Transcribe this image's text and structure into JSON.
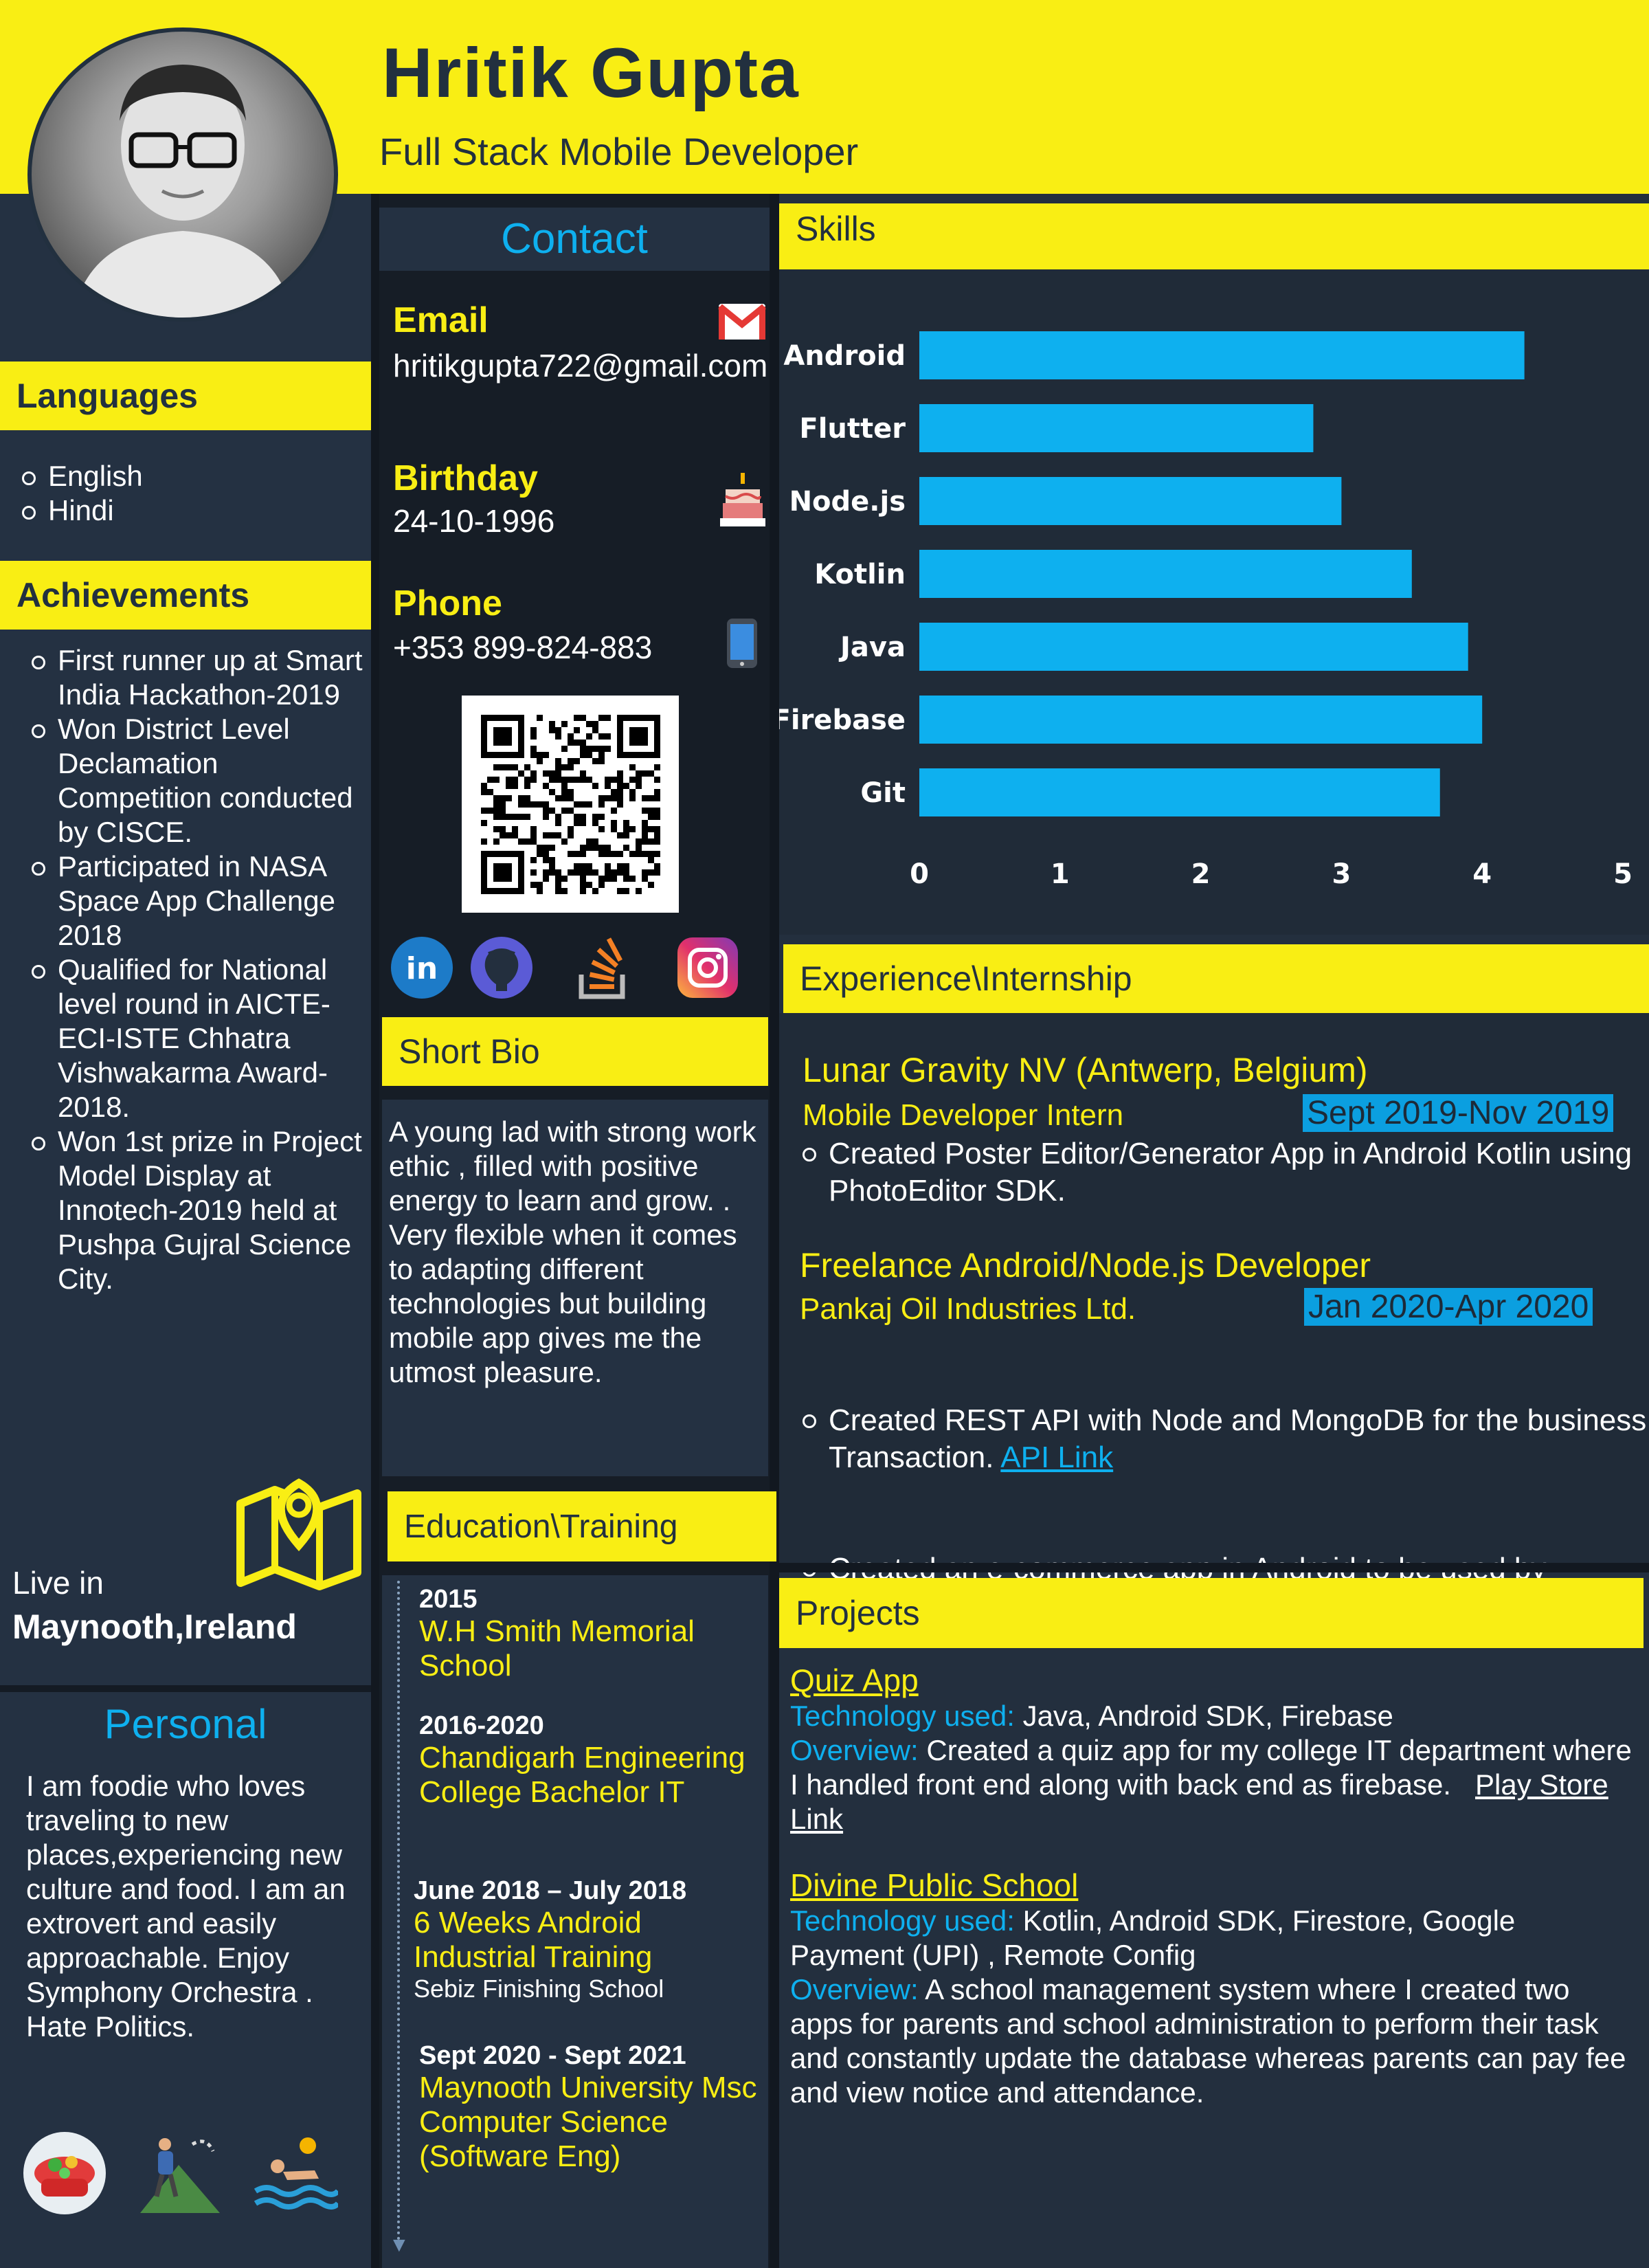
{
  "header": {
    "name": "Hritik Gupta",
    "title": "Full Stack Mobile  Developer"
  },
  "languages": {
    "heading": "Languages",
    "items": [
      "English",
      "Hindi"
    ]
  },
  "achievements": {
    "heading": "Achievements",
    "items": [
      "First runner up at Smart India Hackathon-2019",
      "Won District Level Declamation Competition conducted by CISCE.",
      "Participated in NASA Space App Challenge 2018",
      "Qualified for National level round in AICTE-ECI-ISTE Chhatra Vishwakarma Award-2018.",
      "Won 1st prize in Project Model Display at Innotech-2019 held at Pushpa Gujral Science City."
    ]
  },
  "location": {
    "label": "Live in",
    "value": "Maynooth,Ireland"
  },
  "personal": {
    "heading": "Personal",
    "text": "I am foodie who loves traveling to new places,experiencing new culture and food. I am an extrovert and easily approachable. Enjoy Symphony Orchestra .",
    "text2": "Hate Politics."
  },
  "contact": {
    "heading": "Contact",
    "email_label": "Email",
    "email": "hritikgupta722@gmail.com",
    "birthday_label": "Birthday",
    "birthday": "24-10-1996",
    "phone_label": "Phone",
    "phone": "+353 899-824-883"
  },
  "bio": {
    "heading": "Short Bio",
    "text": "A  young lad with strong work ethic , filled with positive energy to learn and grow.  . Very flexible when it comes to adapting different technologies but building mobile app gives me the utmost pleasure."
  },
  "education": {
    "heading": "Education\\Training",
    "items": [
      {
        "year": "2015",
        "name": "W.H Smith Memorial School",
        "sub": ""
      },
      {
        "year": "2016-2020",
        "name": "Chandigarh Engineering College Bachelor IT",
        "sub": ""
      },
      {
        "year": "June 2018 – July 2018",
        "name": "6 Weeks Android Industrial Training",
        "sub": "Sebiz Finishing School"
      },
      {
        "year": "Sept 2020 - Sept 2021",
        "name": "Maynooth University Msc Computer Science (Software Eng)",
        "sub": ""
      }
    ]
  },
  "skills": {
    "heading": "Skills"
  },
  "chart_data": {
    "type": "bar",
    "orientation": "horizontal",
    "categories": [
      "Android",
      "Flutter",
      "Node.js",
      "Kotlin",
      "Java",
      "Firebase",
      "Git"
    ],
    "values": [
      4.3,
      2.8,
      3.0,
      3.5,
      3.9,
      4.0,
      3.7
    ],
    "xlim": [
      0,
      5
    ],
    "xticks": [
      "0",
      "1",
      "2",
      "3",
      "4",
      "5"
    ],
    "bar_color": "#0eb0ef",
    "grid": false,
    "legend": "none"
  },
  "experience": {
    "heading": "Experience\\Internship",
    "jobs": [
      {
        "company": "Lunar Gravity NV (Antwerp, Belgium)",
        "role": "Mobile Developer Intern",
        "date": "Sept 2019-Nov 2019",
        "points": [
          "Created Poster Editor/Generator App in Android Kotlin using PhotoEditor SDK."
        ]
      },
      {
        "company": "Freelance Android/Node.js Developer",
        "role": "Pankaj Oil Industries Ltd.",
        "date": "Jan 2020-Apr 2020",
        "points": [
          "Created REST API with Node and MongoDB for the business Transaction.",
          "Created an e-commerce app in Android to be used by hundreds of customers of the business."
        ],
        "link": "API Link"
      }
    ]
  },
  "projects": {
    "heading": "Projects",
    "tech_label": "Technology used:",
    "overview_label": "Overview:",
    "items": [
      {
        "title": "Quiz App",
        "tech": "Java, Android SDK, Firebase",
        "overview": "Created a quiz app for my college IT department where I handled front end along with back end as firebase.",
        "link": "Play Store Link"
      },
      {
        "title": "Divine Public School",
        "tech": "Kotlin, Android SDK, Firestore, Google Payment (UPI) , Remote Config",
        "overview": "A school management system where I created two apps for parents and school administration to perform their task and constantly update the database whereas parents can pay fee and view notice and attendance."
      }
    ]
  },
  "colors": {
    "yellow": "#f9ee14",
    "navy": "#243142",
    "dark": "#161d26",
    "cyan": "#0eb0ef"
  },
  "icons": [
    "gmail-icon",
    "birthday-cake-icon",
    "mobile-phone-icon",
    "qr-code",
    "linkedin-icon",
    "github-icon",
    "stackoverflow-icon",
    "instagram-icon",
    "map-pin-icon",
    "food-icon",
    "hiking-icon",
    "swimming-icon"
  ]
}
